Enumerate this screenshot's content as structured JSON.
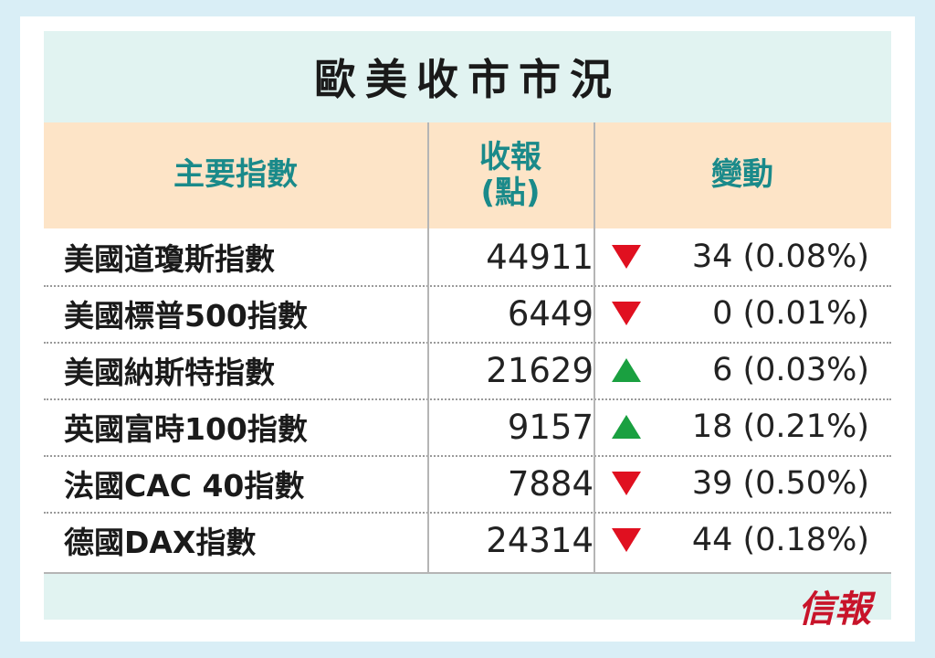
{
  "title": "歐美收市市況",
  "headers": {
    "index": "主要指數",
    "close_line1": "收報",
    "close_line2": "(點)",
    "change": "變動"
  },
  "rows": [
    {
      "name": "美國道瓊斯指數",
      "close": "44911",
      "direction": "down",
      "change": "34 (0.08%)"
    },
    {
      "name": "美國標普500指數",
      "close": "6449",
      "direction": "down",
      "change": "0 (0.01%)"
    },
    {
      "name": "美國納斯特指數",
      "close": "21629",
      "direction": "up",
      "change": "6 (0.03%)"
    },
    {
      "name": "英國富時100指數",
      "close": "9157",
      "direction": "up",
      "change": "18 (0.21%)"
    },
    {
      "name": "法國CAC 40指數",
      "close": "7884",
      "direction": "down",
      "change": "39 (0.50%)"
    },
    {
      "name": "德國DAX指數",
      "close": "24314",
      "direction": "down",
      "change": "44 (0.18%)"
    }
  ],
  "colors": {
    "down": "#e01020",
    "up": "#1aa040",
    "header_text": "#1a8a8a",
    "header_bg": "#fde4c7",
    "panel_bg": "#e1f3f1"
  },
  "logo": "信報"
}
